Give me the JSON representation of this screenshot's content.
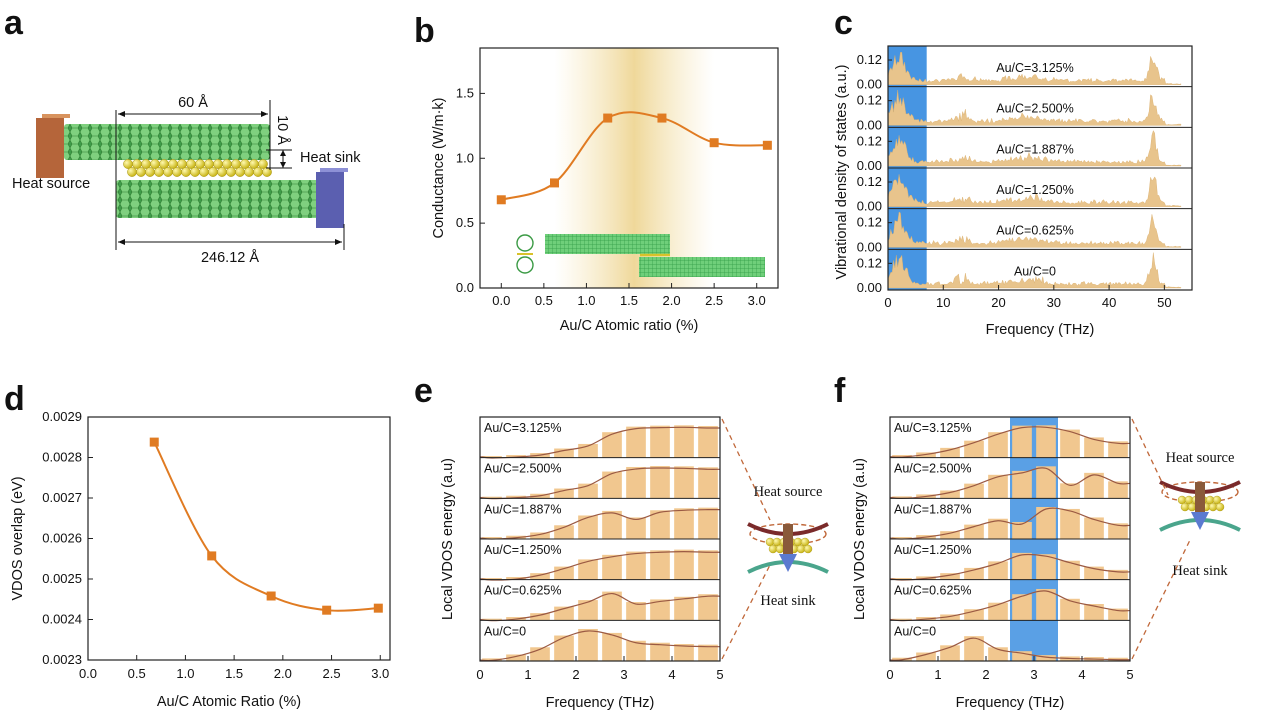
{
  "panels": {
    "a": {
      "letter": "a"
    },
    "b": {
      "letter": "b"
    },
    "c": {
      "letter": "c"
    },
    "d": {
      "letter": "d"
    },
    "e": {
      "letter": "e"
    },
    "f": {
      "letter": "f"
    }
  },
  "schematic_a": {
    "dim_top": "60 Å",
    "dim_right": "10 Å",
    "dim_bottom": "246.12 Å",
    "heat_source": "Heat source",
    "heat_sink": "Heat sink",
    "colors": {
      "source": "#b5653a",
      "sink": "#5b5fb0",
      "graphene": "#4caf50",
      "gold": "#e6d23a"
    }
  },
  "chart_data": [
    {
      "panel": "b",
      "type": "line",
      "title": "",
      "xlabel": "Au/C Atomic ratio (%)",
      "ylabel": "Conductance (W/m·k)",
      "xlim": [
        -0.25,
        3.25
      ],
      "ylim": [
        0.0,
        1.85
      ],
      "xticks": [
        0.0,
        0.5,
        1.0,
        1.5,
        2.0,
        2.5,
        3.0
      ],
      "xtick_labels": [
        "0.0",
        "0.5",
        "1.0",
        "1.5",
        "2.0",
        "2.5",
        "3.0"
      ],
      "yticks": [
        0.0,
        0.5,
        1.0,
        1.5
      ],
      "ytick_labels": [
        "0.0",
        "0.5",
        "1.0",
        "1.5"
      ],
      "x": [
        0,
        0.625,
        1.25,
        1.887,
        2.5,
        3.125
      ],
      "y": [
        0.68,
        0.81,
        1.31,
        1.31,
        1.12,
        1.1
      ],
      "marker": "square",
      "color": "#e07b22",
      "highlight_band": [
        0.625,
        2.5
      ],
      "grid": false
    },
    {
      "panel": "c",
      "type": "area",
      "title": "",
      "xlabel": "Frequency (THz)",
      "ylabel": "Vibrational density of states (a.u.)",
      "xlim": [
        0,
        55
      ],
      "ylim": [
        0.0,
        0.14
      ],
      "xticks": [
        0,
        10,
        20,
        30,
        40,
        50
      ],
      "xtick_labels": [
        "0",
        "10",
        "20",
        "30",
        "40",
        "50"
      ],
      "ytick_labels": [
        "0.12",
        "0.00"
      ],
      "highlight_band": [
        0,
        7
      ],
      "series": [
        {
          "name": "Au/C=3.125%"
        },
        {
          "name": "Au/C=2.500%"
        },
        {
          "name": "Au/C=1.887%"
        },
        {
          "name": "Au/C=1.250%"
        },
        {
          "name": "Au/C=0.625%"
        },
        {
          "name": "Au/C=0"
        }
      ],
      "peaks_thz": [
        2.0,
        13.5,
        25.0,
        48.0
      ],
      "color": "#e8c48c"
    },
    {
      "panel": "d",
      "type": "line",
      "title": "",
      "xlabel": "Au/C Atomic Ratio (%)",
      "ylabel": "VDOS overlap (eV)",
      "xlim": [
        0.0,
        3.1
      ],
      "ylim": [
        0.0023,
        0.0029
      ],
      "xticks": [
        0.0,
        0.5,
        1.0,
        1.5,
        2.0,
        2.5,
        3.0
      ],
      "xtick_labels": [
        "0.0",
        "0.5",
        "1.0",
        "1.5",
        "2.0",
        "2.5",
        "3.0"
      ],
      "yticks": [
        0.0023,
        0.0024,
        0.0025,
        0.0026,
        0.0027,
        0.0028,
        0.0029
      ],
      "ytick_labels": [
        "0.0023",
        "0.0024",
        "0.0025",
        "0.0026",
        "0.0027",
        "0.0028",
        "0.0029"
      ],
      "x": [
        0.68,
        1.27,
        1.88,
        2.45,
        2.98
      ],
      "y": [
        0.002838,
        0.002557,
        0.002458,
        0.002423,
        0.002428
      ],
      "marker": "square",
      "color": "#e07b22",
      "grid": false
    },
    {
      "panel": "e",
      "type": "bar",
      "title": "",
      "xlabel": "Frequency (THz)",
      "ylabel": "Local VDOS energy (a.u)",
      "xlim": [
        0,
        5
      ],
      "xticks": [
        0,
        1,
        2,
        3,
        4,
        5
      ],
      "xtick_labels": [
        "0",
        "1",
        "2",
        "3",
        "4",
        "5"
      ],
      "bin_centers": [
        0.25,
        0.75,
        1.25,
        1.75,
        2.25,
        2.75,
        3.25,
        3.75,
        4.25,
        4.75
      ],
      "series": [
        {
          "name": "Au/C=3.125%",
          "values": [
            0.05,
            0.08,
            0.14,
            0.28,
            0.42,
            0.78,
            0.95,
            0.98,
            0.99,
            0.97
          ]
        },
        {
          "name": "Au/C=2.500%",
          "values": [
            0.05,
            0.08,
            0.14,
            0.3,
            0.45,
            0.82,
            0.96,
            0.99,
            0.98,
            0.95
          ]
        },
        {
          "name": "Au/C=1.887%",
          "values": [
            0.06,
            0.1,
            0.2,
            0.42,
            0.72,
            0.86,
            0.66,
            0.88,
            0.94,
            0.96
          ]
        },
        {
          "name": "Au/C=1.250%",
          "values": [
            0.05,
            0.08,
            0.2,
            0.4,
            0.62,
            0.76,
            0.86,
            0.9,
            0.92,
            0.9
          ]
        },
        {
          "name": "Au/C=0.625%",
          "values": [
            0.05,
            0.1,
            0.22,
            0.42,
            0.62,
            0.88,
            0.56,
            0.64,
            0.72,
            0.8
          ]
        },
        {
          "name": "Au/C=0",
          "values": [
            0.08,
            0.2,
            0.42,
            0.78,
            0.98,
            0.86,
            0.62,
            0.56,
            0.52,
            0.5
          ]
        }
      ],
      "color": "#f1c78f",
      "schematic": {
        "top": "Heat source",
        "bottom": "Heat sink"
      }
    },
    {
      "panel": "f",
      "type": "bar",
      "title": "",
      "xlabel": "Frequency (THz)",
      "ylabel": "Local VDOS energy (a.u)",
      "xlim": [
        0,
        5
      ],
      "xticks": [
        0,
        1,
        2,
        3,
        4,
        5
      ],
      "xtick_labels": [
        "0",
        "1",
        "2",
        "3",
        "4",
        "5"
      ],
      "highlight_band": [
        2.5,
        3.5
      ],
      "bin_centers": [
        0.25,
        0.75,
        1.25,
        1.75,
        2.25,
        2.75,
        3.25,
        3.75,
        4.25,
        4.75
      ],
      "series": [
        {
          "name": "Au/C=3.125%",
          "values": [
            0.08,
            0.16,
            0.3,
            0.52,
            0.78,
            0.98,
            0.99,
            0.86,
            0.62,
            0.5
          ]
        },
        {
          "name": "Au/C=2.500%",
          "values": [
            0.06,
            0.12,
            0.24,
            0.45,
            0.72,
            0.84,
            0.98,
            0.46,
            0.78,
            0.52
          ]
        },
        {
          "name": "Au/C=1.887%",
          "values": [
            0.06,
            0.12,
            0.24,
            0.44,
            0.62,
            0.52,
            0.98,
            0.92,
            0.66,
            0.48
          ]
        },
        {
          "name": "Au/C=1.250%",
          "values": [
            0.05,
            0.1,
            0.2,
            0.36,
            0.56,
            0.82,
            0.78,
            0.58,
            0.4,
            0.3
          ]
        },
        {
          "name": "Au/C=0.625%",
          "values": [
            0.05,
            0.1,
            0.18,
            0.34,
            0.54,
            0.8,
            0.96,
            0.66,
            0.5,
            0.36
          ]
        },
        {
          "name": "Au/C=0",
          "values": [
            0.1,
            0.26,
            0.48,
            0.76,
            0.42,
            0.3,
            0.18,
            0.14,
            0.12,
            0.1
          ]
        }
      ],
      "color": "#f1c78f",
      "schematic": {
        "top": "Heat source",
        "bottom": "Heat sink"
      }
    }
  ]
}
